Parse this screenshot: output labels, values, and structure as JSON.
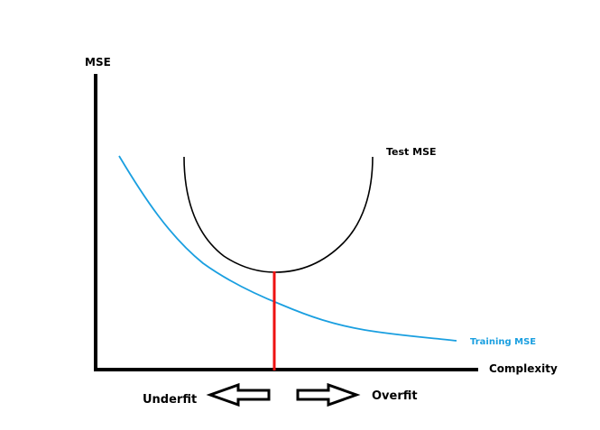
{
  "diagram": {
    "y_axis_label": "MSE",
    "x_axis_label": "Complexity",
    "test_curve_label": "Test MSE",
    "training_curve_label": "Training MSE",
    "left_arrow_label": "Underfit",
    "right_arrow_label": "Overfit",
    "colors": {
      "axes": "#000000",
      "test_curve": "#000000",
      "training_curve": "#1a9fe0",
      "optimum_line": "#ee1111",
      "arrow_fill": "#ffffff",
      "arrow_stroke": "#000000"
    }
  }
}
